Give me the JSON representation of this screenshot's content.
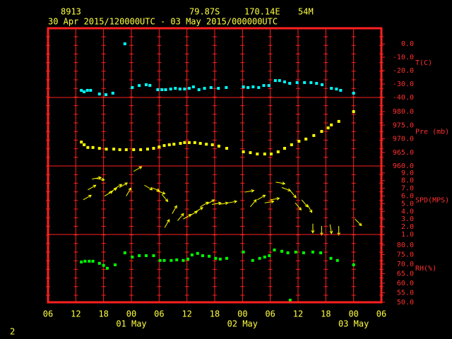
{
  "header": {
    "station": "8913",
    "lat": "79.87S",
    "lon": "170.14E",
    "elev": "54M",
    "period": "30 Apr 2015/120000UTC - 03 May 2015/000000UTC"
  },
  "footer": "2",
  "x_axis": {
    "xlim": [
      0,
      72
    ],
    "xticks": [
      {
        "value": 0,
        "label": "06"
      },
      {
        "value": 6,
        "label": "12"
      },
      {
        "value": 12,
        "label": "18"
      },
      {
        "value": 18,
        "label": "00"
      },
      {
        "value": 24,
        "label": "06"
      },
      {
        "value": 30,
        "label": "12"
      },
      {
        "value": 36,
        "label": "18"
      },
      {
        "value": 42,
        "label": "00"
      },
      {
        "value": 48,
        "label": "06"
      },
      {
        "value": 54,
        "label": "12"
      },
      {
        "value": 60,
        "label": "18"
      },
      {
        "value": 66,
        "label": "00"
      },
      {
        "value": 72,
        "label": "06"
      }
    ],
    "day_ticks": [
      {
        "value": 18,
        "label": "01 May"
      },
      {
        "value": 42,
        "label": "02 May"
      },
      {
        "value": 66,
        "label": "03 May"
      }
    ],
    "grid": true
  },
  "chart_data": [
    {
      "type": "scatter",
      "ylabel": "T(C)",
      "color": "#00ffff",
      "ylim": [
        -40,
        11.6
      ],
      "yticks": [
        {
          "value": 0,
          "label": "0.0"
        },
        {
          "value": -10,
          "label": "-10.0"
        },
        {
          "value": -20,
          "label": "-20.0"
        },
        {
          "value": -30,
          "label": "-30.0"
        },
        {
          "value": -40,
          "label": "-40.0"
        }
      ],
      "x": [
        7.2,
        7.8,
        8.5,
        9.2,
        11.1,
        12.5,
        14,
        16.6,
        18.2,
        19.7,
        21.2,
        22,
        23.7,
        24.6,
        25.4,
        26.5,
        27.5,
        28.5,
        29.5,
        30.5,
        31.4,
        32.6,
        33.8,
        35.2,
        36.8,
        38.5,
        42.2,
        43.2,
        44.3,
        45.5,
        46.6,
        47.7,
        49.1,
        50,
        51.1,
        52.2,
        53.8,
        55.4,
        56.8,
        58,
        59.2,
        61.2,
        62.3,
        63.2,
        66
      ],
      "values": [
        -34.7,
        -35.8,
        -34.7,
        -34.7,
        -37.4,
        -37.9,
        -36.8,
        0.0,
        -32.6,
        -31.1,
        -30.5,
        -31,
        -34.2,
        -34.2,
        -34.2,
        -33.7,
        -33.2,
        -33.7,
        -33.7,
        -33.2,
        -32.1,
        -34.2,
        -33.2,
        -32.6,
        -33.2,
        -32.6,
        -32.1,
        -32.6,
        -32.1,
        -32.6,
        -31.1,
        -31.1,
        -27.4,
        -27.4,
        -28.4,
        -29.5,
        -28.9,
        -28.9,
        -28.9,
        -29.5,
        -30.5,
        -33.2,
        -33.7,
        -34.7,
        -36.8
      ]
    },
    {
      "type": "scatter",
      "ylabel": "Pre (mb)",
      "color": "#ffff00",
      "ylim": [
        960,
        985.2
      ],
      "yticks": [
        {
          "value": 980,
          "label": "980.0"
        },
        {
          "value": 975,
          "label": "975.0"
        },
        {
          "value": 970,
          "label": "970.0"
        },
        {
          "value": 965,
          "label": "965.0"
        },
        {
          "value": 960,
          "label": "960.0"
        }
      ],
      "x": [
        7.2,
        7.8,
        8.6,
        9.7,
        11.1,
        12.6,
        14.2,
        15.5,
        16.9,
        18.5,
        20,
        21.5,
        22.8,
        24,
        25.1,
        26.2,
        27.2,
        28.6,
        29.5,
        30.5,
        31.7,
        32.9,
        34.2,
        35.5,
        36.9,
        38.6,
        42.2,
        43.7,
        45.2,
        46.8,
        48.2,
        49.7,
        51.1,
        52.6,
        54.2,
        55.7,
        57.4,
        59.1,
        60.5,
        61.2,
        62.8,
        66
      ],
      "values": [
        968.8,
        967.8,
        966.8,
        966.8,
        966.5,
        966.2,
        966.2,
        966,
        966,
        966,
        966,
        966.2,
        966.5,
        967,
        967.5,
        967.8,
        968,
        968.3,
        968.6,
        968.6,
        968.6,
        968.3,
        968,
        967.8,
        967.3,
        966.5,
        965.2,
        964.9,
        964.4,
        964.4,
        964.4,
        965.2,
        966.5,
        967.8,
        969.1,
        969.9,
        971.2,
        972.7,
        974,
        975.1,
        976.4,
        980
      ]
    },
    {
      "type": "quiver",
      "ylabel": "SPD(MPS)",
      "color": "#ffff00",
      "ylim": [
        1,
        9.9
      ],
      "yticks": [
        {
          "value": 9,
          "label": "9.0"
        },
        {
          "value": 8,
          "label": "8.0"
        },
        {
          "value": 7,
          "label": "7.0"
        },
        {
          "value": 6,
          "label": "6.0"
        },
        {
          "value": 5,
          "label": "5.0"
        },
        {
          "value": 4,
          "label": "4.0"
        },
        {
          "value": 3,
          "label": "3.0"
        },
        {
          "value": 2,
          "label": "2.0"
        },
        {
          "value": 1,
          "label": "1.0"
        }
      ],
      "x": [
        7.6,
        8.6,
        9.5,
        10.2,
        12.2,
        13.1,
        14.2,
        15.4,
        16.9,
        18.5,
        20.8,
        22.2,
        23.4,
        24.6,
        25.2,
        26.8,
        28,
        29.2,
        30.5,
        31.7,
        32.9,
        34.2,
        35.4,
        36.9,
        38.8,
        42.5,
        43.7,
        45.2,
        46.8,
        48,
        49.2,
        50.5,
        52.3,
        53.4,
        54.8,
        56,
        57.2,
        59.1,
        60.9,
        62.8,
        66.3
      ],
      "values": [
        5.5,
        6.8,
        8.2,
        8.3,
        6.0,
        6.4,
        6.9,
        7.1,
        6.0,
        9.2,
        7.4,
        7.1,
        6.7,
        6.2,
        1.9,
        3.7,
        2.8,
        3.0,
        3.4,
        3.9,
        4.6,
        4.9,
        4.9,
        4.9,
        5.1,
        6.5,
        4.6,
        5.5,
        5.1,
        5.5,
        7.8,
        7.1,
        6.7,
        5.1,
        5.5,
        4.9,
        2.4,
        2.1,
        2.3,
        2.1,
        3
      ],
      "directions": [
        60,
        60,
        80,
        100,
        60,
        60,
        60,
        60,
        30,
        60,
        120,
        110,
        110,
        140,
        30,
        30,
        40,
        60,
        60,
        60,
        60,
        60,
        80,
        80,
        80,
        80,
        40,
        60,
        80,
        80,
        100,
        110,
        140,
        140,
        140,
        150,
        180,
        180,
        170,
        180,
        135
      ]
    },
    {
      "type": "scatter",
      "ylabel": "RH(%)",
      "color": "#00ff00",
      "ylim": [
        50,
        85.5
      ],
      "yticks": [
        {
          "value": 80,
          "label": "80.0"
        },
        {
          "value": 75,
          "label": "75.0"
        },
        {
          "value": 70,
          "label": "70.0"
        },
        {
          "value": 65,
          "label": "65.0"
        },
        {
          "value": 60,
          "label": "60.0"
        },
        {
          "value": 55,
          "label": "55.0"
        },
        {
          "value": 50,
          "label": "50.0"
        }
      ],
      "x": [
        7.2,
        8,
        8.9,
        9.7,
        11.1,
        12,
        12.8,
        14.5,
        16.6,
        18.2,
        19.7,
        21.2,
        22.8,
        24.2,
        25.1,
        26.6,
        27.8,
        29.2,
        30.2,
        31.1,
        32.3,
        33.4,
        34.8,
        36.2,
        37.2,
        38.6,
        42.2,
        44.2,
        45.7,
        46.8,
        47.8,
        48.9,
        50.5,
        51.8,
        52.3,
        53.5,
        55.2,
        57.2,
        58.9,
        61.1,
        62.5,
        66
      ],
      "values": [
        71.1,
        71.5,
        71.5,
        71.5,
        70.4,
        69.3,
        67.8,
        69.6,
        75.9,
        73.7,
        74.4,
        74.4,
        74.4,
        71.9,
        71.9,
        71.9,
        72.2,
        71.9,
        72.6,
        74.8,
        75.6,
        74.4,
        74.1,
        73,
        72.6,
        73,
        76.3,
        71.9,
        73,
        73.7,
        74.4,
        77.4,
        76.7,
        75.9,
        51.1,
        76.3,
        75.9,
        76.3,
        75.9,
        73,
        71.9,
        69.6
      ]
    }
  ]
}
